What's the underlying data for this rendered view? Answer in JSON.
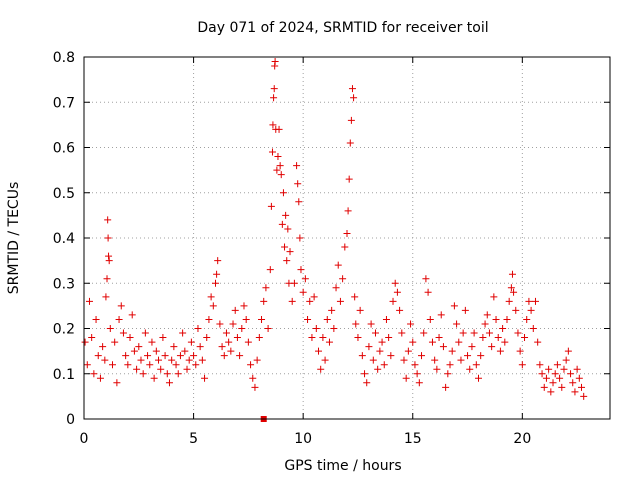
{
  "chart_data": {
    "type": "scatter",
    "title": "Day 071 of 2024, SRMTID for receiver toil",
    "xlabel": "GPS time / hours",
    "ylabel": "SRMTID / TECUs",
    "xlim": [
      0,
      24
    ],
    "ylim": [
      0,
      0.8
    ],
    "xticks": [
      0,
      5,
      10,
      15,
      20
    ],
    "yticks": [
      0,
      0.1,
      0.2,
      0.3,
      0.4,
      0.5,
      0.6,
      0.7,
      0.8
    ],
    "xtick_labels": [
      "0",
      "5",
      "10",
      "15",
      "20"
    ],
    "ytick_labels": [
      "0",
      "0.1",
      "0.2",
      "0.3",
      "0.4",
      "0.5",
      "0.6",
      "0.7",
      "0.8"
    ],
    "grid": true,
    "marker": "plus",
    "marker_color": "#e00000",
    "series": [
      {
        "name": "SRMTID",
        "color": "#e00000",
        "points": [
          [
            0.05,
            0.17
          ],
          [
            0.15,
            0.12
          ],
          [
            0.25,
            0.26
          ],
          [
            0.35,
            0.18
          ],
          [
            0.45,
            0.1
          ],
          [
            0.55,
            0.22
          ],
          [
            0.65,
            0.14
          ],
          [
            0.75,
            0.09
          ],
          [
            0.85,
            0.16
          ],
          [
            0.95,
            0.13
          ],
          [
            1.0,
            0.27
          ],
          [
            1.05,
            0.31
          ],
          [
            1.08,
            0.44
          ],
          [
            1.1,
            0.4
          ],
          [
            1.12,
            0.36
          ],
          [
            1.15,
            0.35
          ],
          [
            1.2,
            0.2
          ],
          [
            1.3,
            0.12
          ],
          [
            1.4,
            0.17
          ],
          [
            1.5,
            0.08
          ],
          [
            1.6,
            0.22
          ],
          [
            1.7,
            0.25
          ],
          [
            1.8,
            0.19
          ],
          [
            1.9,
            0.14
          ],
          [
            2.0,
            0.12
          ],
          [
            2.1,
            0.18
          ],
          [
            2.2,
            0.23
          ],
          [
            2.3,
            0.15
          ],
          [
            2.4,
            0.11
          ],
          [
            2.5,
            0.16
          ],
          [
            2.6,
            0.13
          ],
          [
            2.7,
            0.1
          ],
          [
            2.8,
            0.19
          ],
          [
            2.9,
            0.14
          ],
          [
            3.0,
            0.12
          ],
          [
            3.1,
            0.17
          ],
          [
            3.2,
            0.09
          ],
          [
            3.3,
            0.15
          ],
          [
            3.4,
            0.13
          ],
          [
            3.5,
            0.11
          ],
          [
            3.6,
            0.18
          ],
          [
            3.7,
            0.14
          ],
          [
            3.8,
            0.1
          ],
          [
            3.9,
            0.08
          ],
          [
            4.0,
            0.13
          ],
          [
            4.1,
            0.16
          ],
          [
            4.2,
            0.12
          ],
          [
            4.3,
            0.1
          ],
          [
            4.4,
            0.14
          ],
          [
            4.5,
            0.19
          ],
          [
            4.6,
            0.15
          ],
          [
            4.7,
            0.11
          ],
          [
            4.8,
            0.13
          ],
          [
            4.9,
            0.17
          ],
          [
            5.0,
            0.14
          ],
          [
            5.1,
            0.12
          ],
          [
            5.2,
            0.2
          ],
          [
            5.3,
            0.16
          ],
          [
            5.4,
            0.13
          ],
          [
            5.5,
            0.09
          ],
          [
            5.6,
            0.18
          ],
          [
            5.7,
            0.22
          ],
          [
            5.8,
            0.27
          ],
          [
            5.9,
            0.25
          ],
          [
            6.0,
            0.3
          ],
          [
            6.05,
            0.32
          ],
          [
            6.1,
            0.35
          ],
          [
            6.2,
            0.21
          ],
          [
            6.3,
            0.16
          ],
          [
            6.4,
            0.14
          ],
          [
            6.5,
            0.19
          ],
          [
            6.6,
            0.17
          ],
          [
            6.7,
            0.15
          ],
          [
            6.8,
            0.21
          ],
          [
            6.9,
            0.24
          ],
          [
            7.0,
            0.18
          ],
          [
            7.1,
            0.14
          ],
          [
            7.2,
            0.2
          ],
          [
            7.3,
            0.25
          ],
          [
            7.4,
            0.22
          ],
          [
            7.5,
            0.17
          ],
          [
            7.6,
            0.12
          ],
          [
            7.7,
            0.09
          ],
          [
            7.8,
            0.07
          ],
          [
            7.9,
            0.13
          ],
          [
            8.0,
            0.18
          ],
          [
            8.1,
            0.22
          ],
          [
            8.2,
            0.26
          ],
          [
            8.3,
            0.29
          ],
          [
            8.4,
            0.2
          ],
          [
            8.5,
            0.33
          ],
          [
            8.55,
            0.47
          ],
          [
            8.6,
            0.59
          ],
          [
            8.62,
            0.65
          ],
          [
            8.65,
            0.71
          ],
          [
            8.68,
            0.73
          ],
          [
            8.7,
            0.78
          ],
          [
            8.72,
            0.79
          ],
          [
            8.75,
            0.64
          ],
          [
            8.8,
            0.55
          ],
          [
            8.85,
            0.58
          ],
          [
            8.9,
            0.64
          ],
          [
            8.95,
            0.56
          ],
          [
            9.0,
            0.54
          ],
          [
            9.05,
            0.43
          ],
          [
            9.1,
            0.5
          ],
          [
            9.15,
            0.38
          ],
          [
            9.2,
            0.45
          ],
          [
            9.25,
            0.35
          ],
          [
            9.3,
            0.42
          ],
          [
            9.35,
            0.3
          ],
          [
            9.4,
            0.37
          ],
          [
            9.5,
            0.26
          ],
          [
            9.6,
            0.3
          ],
          [
            9.7,
            0.56
          ],
          [
            9.75,
            0.52
          ],
          [
            9.8,
            0.48
          ],
          [
            9.85,
            0.4
          ],
          [
            9.9,
            0.33
          ],
          [
            10.0,
            0.28
          ],
          [
            10.1,
            0.31
          ],
          [
            10.2,
            0.22
          ],
          [
            10.3,
            0.26
          ],
          [
            10.4,
            0.18
          ],
          [
            10.5,
            0.27
          ],
          [
            10.6,
            0.2
          ],
          [
            10.7,
            0.15
          ],
          [
            10.8,
            0.11
          ],
          [
            10.9,
            0.18
          ],
          [
            11.0,
            0.13
          ],
          [
            11.1,
            0.22
          ],
          [
            11.2,
            0.17
          ],
          [
            11.3,
            0.24
          ],
          [
            11.4,
            0.2
          ],
          [
            11.5,
            0.29
          ],
          [
            11.6,
            0.34
          ],
          [
            11.7,
            0.26
          ],
          [
            11.8,
            0.31
          ],
          [
            11.9,
            0.38
          ],
          [
            12.0,
            0.41
          ],
          [
            12.05,
            0.46
          ],
          [
            12.1,
            0.53
          ],
          [
            12.15,
            0.61
          ],
          [
            12.2,
            0.66
          ],
          [
            12.25,
            0.73
          ],
          [
            12.3,
            0.71
          ],
          [
            12.35,
            0.27
          ],
          [
            12.4,
            0.21
          ],
          [
            12.5,
            0.18
          ],
          [
            12.6,
            0.24
          ],
          [
            12.7,
            0.14
          ],
          [
            12.8,
            0.1
          ],
          [
            12.9,
            0.08
          ],
          [
            13.0,
            0.16
          ],
          [
            13.1,
            0.21
          ],
          [
            13.2,
            0.13
          ],
          [
            13.3,
            0.19
          ],
          [
            13.4,
            0.11
          ],
          [
            13.5,
            0.15
          ],
          [
            13.6,
            0.17
          ],
          [
            13.7,
            0.12
          ],
          [
            13.8,
            0.22
          ],
          [
            13.9,
            0.18
          ],
          [
            14.0,
            0.14
          ],
          [
            14.1,
            0.26
          ],
          [
            14.2,
            0.3
          ],
          [
            14.3,
            0.28
          ],
          [
            14.4,
            0.24
          ],
          [
            14.5,
            0.19
          ],
          [
            14.6,
            0.13
          ],
          [
            14.7,
            0.09
          ],
          [
            14.8,
            0.15
          ],
          [
            14.9,
            0.21
          ],
          [
            15.0,
            0.17
          ],
          [
            15.1,
            0.12
          ],
          [
            15.2,
            0.1
          ],
          [
            15.3,
            0.08
          ],
          [
            15.4,
            0.14
          ],
          [
            15.5,
            0.19
          ],
          [
            15.6,
            0.31
          ],
          [
            15.7,
            0.28
          ],
          [
            15.8,
            0.22
          ],
          [
            15.9,
            0.17
          ],
          [
            16.0,
            0.13
          ],
          [
            16.1,
            0.11
          ],
          [
            16.2,
            0.18
          ],
          [
            16.3,
            0.23
          ],
          [
            16.4,
            0.16
          ],
          [
            16.5,
            0.07
          ],
          [
            16.6,
            0.1
          ],
          [
            16.7,
            0.12
          ],
          [
            16.8,
            0.15
          ],
          [
            16.9,
            0.25
          ],
          [
            17.0,
            0.21
          ],
          [
            17.1,
            0.17
          ],
          [
            17.2,
            0.13
          ],
          [
            17.3,
            0.19
          ],
          [
            17.4,
            0.24
          ],
          [
            17.5,
            0.14
          ],
          [
            17.6,
            0.11
          ],
          [
            17.7,
            0.16
          ],
          [
            17.8,
            0.19
          ],
          [
            17.9,
            0.12
          ],
          [
            18.0,
            0.09
          ],
          [
            18.1,
            0.14
          ],
          [
            18.2,
            0.18
          ],
          [
            18.3,
            0.21
          ],
          [
            18.4,
            0.23
          ],
          [
            18.5,
            0.19
          ],
          [
            18.6,
            0.16
          ],
          [
            18.7,
            0.27
          ],
          [
            18.8,
            0.22
          ],
          [
            18.9,
            0.18
          ],
          [
            19.0,
            0.15
          ],
          [
            19.1,
            0.2
          ],
          [
            19.2,
            0.17
          ],
          [
            19.3,
            0.22
          ],
          [
            19.4,
            0.26
          ],
          [
            19.5,
            0.29
          ],
          [
            19.55,
            0.32
          ],
          [
            19.6,
            0.28
          ],
          [
            19.7,
            0.24
          ],
          [
            19.8,
            0.19
          ],
          [
            19.9,
            0.15
          ],
          [
            20.0,
            0.12
          ],
          [
            20.1,
            0.18
          ],
          [
            20.2,
            0.22
          ],
          [
            20.3,
            0.26
          ],
          [
            20.4,
            0.24
          ],
          [
            20.5,
            0.2
          ],
          [
            20.6,
            0.26
          ],
          [
            20.7,
            0.17
          ],
          [
            20.8,
            0.12
          ],
          [
            20.9,
            0.1
          ],
          [
            21.0,
            0.07
          ],
          [
            21.1,
            0.09
          ],
          [
            21.2,
            0.11
          ],
          [
            21.3,
            0.06
          ],
          [
            21.4,
            0.08
          ],
          [
            21.5,
            0.1
          ],
          [
            21.6,
            0.12
          ],
          [
            21.7,
            0.09
          ],
          [
            21.8,
            0.07
          ],
          [
            21.9,
            0.11
          ],
          [
            22.0,
            0.13
          ],
          [
            22.1,
            0.15
          ],
          [
            22.2,
            0.1
          ],
          [
            22.3,
            0.08
          ],
          [
            22.4,
            0.06
          ],
          [
            22.5,
            0.11
          ],
          [
            22.6,
            0.09
          ],
          [
            22.7,
            0.07
          ],
          [
            22.8,
            0.05
          ]
        ]
      },
      {
        "name": "marker",
        "color": "#e00000",
        "marker": "square",
        "points": [
          [
            8.2,
            0.0
          ]
        ]
      }
    ]
  }
}
